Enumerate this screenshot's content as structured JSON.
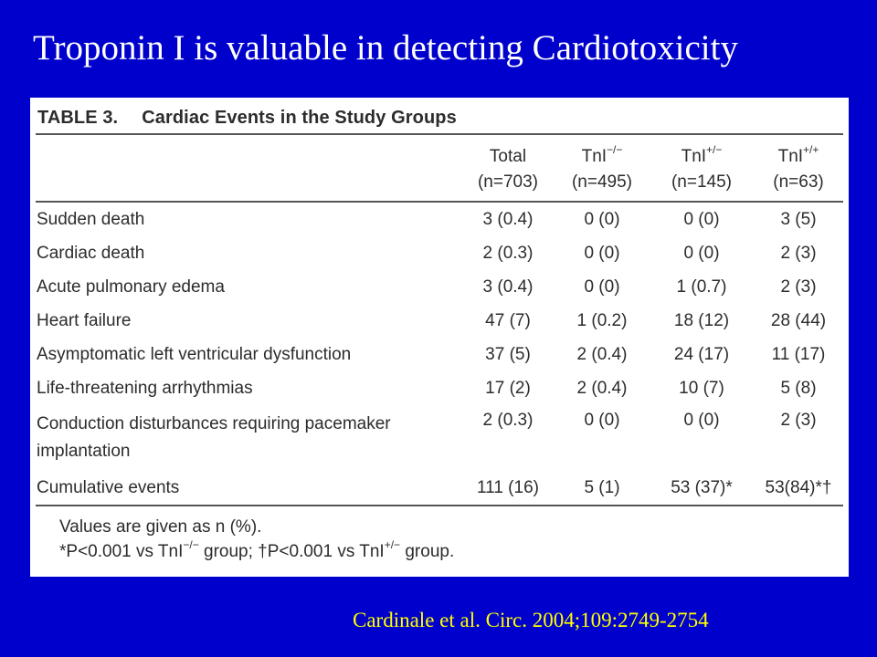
{
  "slide": {
    "title": "Troponin I is valuable in detecting Cardiotoxicity",
    "citation": "Cardinale et al. Circ. 2004;109:2749-2754",
    "background_color": "#0000cc",
    "title_color": "#ffffff",
    "citation_color": "#ffff00"
  },
  "table": {
    "caption_label": "TABLE 3.",
    "caption_text": "Cardiac Events in the Study Groups",
    "columns": [
      {
        "name": "Total",
        "sup": "",
        "n": "(n=703)"
      },
      {
        "name": "TnI",
        "sup": "−/−",
        "n": "(n=495)"
      },
      {
        "name": "TnI",
        "sup": "+/−",
        "n": "(n=145)"
      },
      {
        "name": "TnI",
        "sup": "+/+",
        "n": "(n=63)"
      }
    ],
    "rows": [
      {
        "label": "Sudden death",
        "values": [
          "3 (0.4)",
          "0 (0)",
          "0 (0)",
          "3 (5)"
        ]
      },
      {
        "label": "Cardiac death",
        "values": [
          "2 (0.3)",
          "0 (0)",
          "0 (0)",
          "2 (3)"
        ]
      },
      {
        "label": "Acute pulmonary edema",
        "values": [
          "3 (0.4)",
          "0 (0)",
          "1 (0.7)",
          "2 (3)"
        ]
      },
      {
        "label": "Heart failure",
        "values": [
          "47 (7)",
          "1 (0.2)",
          "18 (12)",
          "28 (44)"
        ]
      },
      {
        "label": "Asymptomatic left ventricular dysfunction",
        "values": [
          "37 (5)",
          "2 (0.4)",
          "24 (17)",
          "11 (17)"
        ]
      },
      {
        "label": "Life-threatening arrhythmias",
        "values": [
          "17 (2)",
          "2 (0.4)",
          "10 (7)",
          "5 (8)"
        ]
      },
      {
        "label": "Conduction disturbances requiring pacemaker implantation",
        "values": [
          "2 (0.3)",
          "0 (0)",
          "0 (0)",
          "2 (3)"
        ]
      },
      {
        "label": "Cumulative events",
        "values": [
          "111 (16)",
          "5 (1)",
          "53 (37)*",
          "53(84)*†"
        ]
      }
    ],
    "footnotes": {
      "line1": "Values are given as n (%).",
      "line2_part1": "*P<0.001 vs TnI",
      "line2_sup1": "−/−",
      "line2_part2": " group; †P<0.001 vs TnI",
      "line2_sup2": "+/−",
      "line2_part3": " group."
    }
  }
}
